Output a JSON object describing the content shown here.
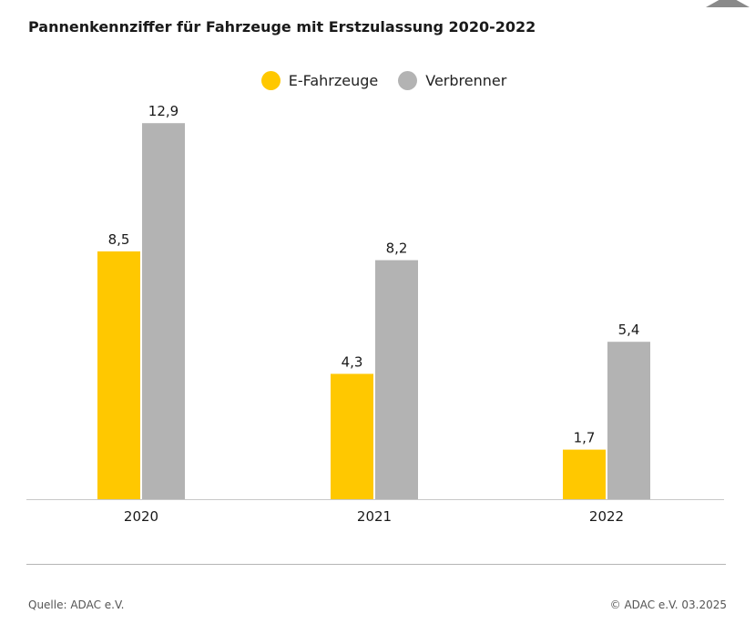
{
  "colors": {
    "e_fahrzeuge": "#FFC800",
    "verbrenner": "#B3B3B3",
    "baseline": "#c8c8c8",
    "corner_tab": "#8a8a8a"
  },
  "chart_data": {
    "type": "bar",
    "title": "Pannenkennziffer für Fahrzeuge mit Erstzulassung 2020-2022",
    "categories": [
      "2020",
      "2021",
      "2022"
    ],
    "series": [
      {
        "name": "E-Fahrzeuge",
        "values": [
          8.5,
          4.3,
          1.7
        ],
        "labels": [
          "8,5",
          "4,3",
          "1,7"
        ]
      },
      {
        "name": "Verbrenner",
        "values": [
          12.9,
          8.2,
          5.4
        ],
        "labels": [
          "12,9",
          "8,2",
          "5,4"
        ]
      }
    ],
    "ylim": [
      0,
      14
    ],
    "grid": false,
    "legend_position": "top-center"
  },
  "footer": {
    "source": "Quelle: ADAC e.V.",
    "copyright": "© ADAC e.V. 03.2025"
  }
}
